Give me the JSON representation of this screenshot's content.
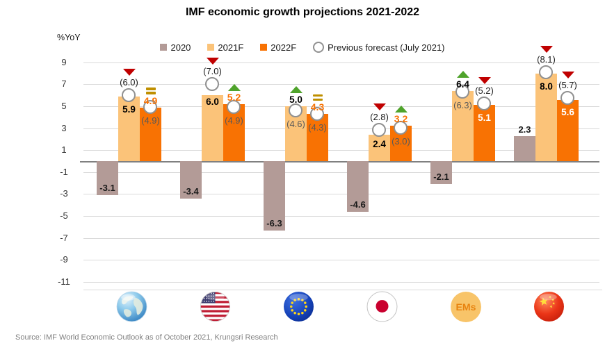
{
  "page": {
    "title": "IMF economic growth projections 2021-2022",
    "source": "Source: IMF World Economic Outlook as of October 2021, Krungsri Research"
  },
  "chart_data": {
    "type": "bar",
    "title": "IMF economic growth projections 2021-2022",
    "ylabel": "%YoY",
    "ylim": [
      -11,
      9
    ],
    "ytick_step": 2,
    "grid": true,
    "legend_position": "top-center",
    "categories": [
      "World",
      "US",
      "EU",
      "Japan",
      "EMs",
      "China"
    ],
    "category_icons": [
      "globe-icon",
      "us-flag-icon",
      "eu-flag-icon",
      "japan-flag-icon",
      "ems-icon",
      "china-flag-icon"
    ],
    "series": [
      {
        "name": "2020",
        "values": [
          -3.1,
          -3.4,
          -6.3,
          -4.6,
          -2.1,
          2.3
        ]
      },
      {
        "name": "2021F",
        "values": [
          5.9,
          6.0,
          5.0,
          2.4,
          6.4,
          8.0
        ],
        "previous_forecast_july2021": [
          6.0,
          7.0,
          4.6,
          2.8,
          6.3,
          8.1
        ]
      },
      {
        "name": "2022F",
        "values": [
          4.9,
          5.2,
          4.3,
          3.2,
          5.1,
          5.6
        ],
        "previous_forecast_july2021": [
          4.9,
          4.9,
          4.3,
          3.0,
          5.2,
          5.7
        ]
      }
    ],
    "previous_forecast_legend": "Previous forecast (July 2021)",
    "ems_label": "EMs"
  },
  "colors": {
    "bar_2020": "#B39B97",
    "bar_2021f": "#FBC379",
    "bar_2022f": "#F87203",
    "upgrade_green": "#4FA32B",
    "downgrade_red": "#C00000",
    "unchanged_gold": "#BF8F00",
    "circle_marker_stroke": "#909090",
    "prev_label_gray": "#595959",
    "label_black": "#1a1a1a",
    "gridline": "#D9D9D9",
    "zero_axis": "#808080",
    "source_text": "#808080",
    "ems_circle": "#F8C469",
    "ems_text": "#E8830F"
  }
}
